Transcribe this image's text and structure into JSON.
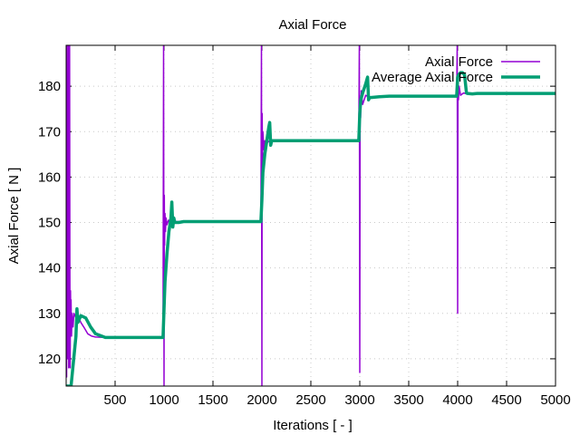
{
  "chart_data": {
    "type": "line",
    "title": "Axial Force",
    "xlabel": "Iterations [ - ]",
    "ylabel": "Axial Force [ N ]",
    "xlim": [
      0,
      5000
    ],
    "ylim": [
      114,
      189
    ],
    "xticks": [
      500,
      1000,
      1500,
      2000,
      2500,
      3000,
      3500,
      4000,
      4500,
      5000
    ],
    "yticks": [
      120,
      130,
      140,
      150,
      160,
      170,
      180
    ],
    "grid": true,
    "legend_position": "top-right",
    "series": [
      {
        "name": "Axial Force",
        "color": "#9400d3",
        "x": [
          0,
          5,
          8,
          11,
          14,
          17,
          20,
          23,
          26,
          29,
          32,
          35,
          38,
          41,
          44,
          47,
          50,
          55,
          60,
          70,
          80,
          100,
          120,
          150,
          180,
          220,
          260,
          300,
          400,
          500,
          600,
          700,
          800,
          990,
          995,
          1000,
          1003,
          1006,
          1010,
          1015,
          1020,
          1030,
          1045,
          1060,
          1080,
          1100,
          1150,
          1200,
          1300,
          1500,
          1990,
          1995,
          2000,
          2003,
          2006,
          2010,
          2020,
          2030,
          2050,
          2080,
          2100,
          2150,
          2200,
          2300,
          2500,
          2990,
          2995,
          3000,
          3004,
          3008,
          3015,
          3030,
          3060,
          3100,
          3200,
          3500,
          3990,
          3995,
          4000,
          4004,
          4008,
          4015,
          4030,
          4060,
          4100,
          4200,
          4500,
          5000
        ],
        "y": [
          189,
          116,
          189,
          150,
          120,
          160,
          135,
          189,
          118,
          145,
          125,
          189,
          140,
          118,
          135,
          128,
          133,
          125,
          130,
          127,
          130,
          129,
          129.5,
          128,
          127,
          125.5,
          125,
          124.8,
          124.7,
          124.7,
          124.7,
          124.7,
          124.7,
          124.7,
          189,
          114,
          156,
          145,
          152,
          148,
          151,
          149.5,
          150.5,
          150,
          150.2,
          150.2,
          150.2,
          150.2,
          150.2,
          150.2,
          150.2,
          189,
          114,
          174,
          163,
          170,
          166,
          168,
          167.5,
          168,
          168,
          168,
          168,
          168,
          168,
          168,
          189,
          117,
          177,
          173,
          179,
          176,
          178,
          177.5,
          177.8,
          177.8,
          177.8,
          189,
          130,
          182,
          177,
          180,
          178,
          178.5,
          178.3,
          178.3,
          178.3,
          178.3
        ]
      },
      {
        "name": "Average Axial Force",
        "color": "#009e73",
        "x": [
          0,
          50,
          100,
          110,
          120,
          150,
          200,
          250,
          300,
          400,
          500,
          600,
          700,
          800,
          990,
          1000,
          1010,
          1030,
          1050,
          1070,
          1080,
          1090,
          1100,
          1110,
          1150,
          1200,
          1300,
          1400,
          1500,
          1990,
          2000,
          2010,
          2030,
          2050,
          2070,
          2080,
          2090,
          2100,
          2150,
          2200,
          2300,
          2500,
          2990,
          3000,
          3010,
          3030,
          3060,
          3080,
          3090,
          3100,
          3150,
          3200,
          3300,
          3500,
          3990,
          4000,
          4010,
          4030,
          4050,
          4070,
          4090,
          4100,
          4150,
          4200,
          4300,
          4500,
          5000
        ],
        "y": [
          114,
          114,
          125,
          131,
          128,
          129.5,
          129,
          127,
          125.5,
          124.7,
          124.7,
          124.7,
          124.7,
          124.7,
          124.7,
          131,
          137,
          143,
          148,
          151,
          154.5,
          149,
          151,
          150,
          150,
          150.2,
          150.2,
          150.2,
          150.2,
          150.2,
          155,
          161,
          165,
          168,
          171,
          172,
          167,
          168,
          168,
          168,
          168,
          168,
          168,
          174,
          177,
          178.5,
          180.5,
          182,
          177,
          177.5,
          177.6,
          177.7,
          177.8,
          177.8,
          177.8,
          182,
          182.5,
          183,
          183,
          182.5,
          178.5,
          178.4,
          178.3,
          178.4,
          178.4,
          178.4,
          178.4
        ]
      }
    ]
  }
}
